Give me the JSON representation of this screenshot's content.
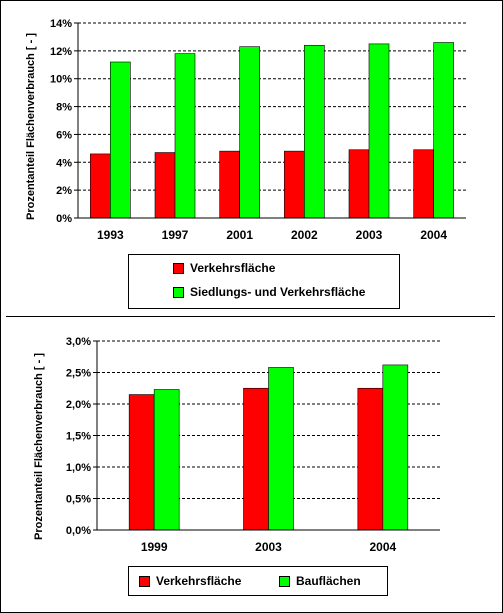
{
  "chart_data": [
    {
      "type": "bar",
      "categories": [
        "1993",
        "1997",
        "2001",
        "2002",
        "2003",
        "2004"
      ],
      "series": [
        {
          "name": "Verkehrsfläche",
          "values": [
            4.6,
            4.7,
            4.8,
            4.8,
            4.9,
            4.9
          ],
          "color": "#ff0000"
        },
        {
          "name": "Siedlungs- und Verkehrsfläche",
          "values": [
            11.2,
            11.8,
            12.3,
            12.4,
            12.5,
            12.6
          ],
          "color": "#00ff00"
        }
      ],
      "ylabel": "Prozentanteil Flächenverbrauch [ - ]",
      "ylim": [
        0,
        14
      ],
      "yticks": [
        "0%",
        "2%",
        "4%",
        "6%",
        "8%",
        "10%",
        "12%",
        "14%"
      ],
      "grid": true,
      "legend": "bottom"
    },
    {
      "type": "bar",
      "categories": [
        "1999",
        "2003",
        "2004"
      ],
      "series": [
        {
          "name": "Verkehrsfläche",
          "values": [
            2.15,
            2.25,
            2.25
          ],
          "color": "#ff0000"
        },
        {
          "name": "Bauflächen",
          "values": [
            2.23,
            2.58,
            2.62
          ],
          "color": "#00ff00"
        }
      ],
      "ylabel": "Prozentanteil Flächenverbrauch [ - ]",
      "ylim": [
        0,
        3
      ],
      "yticks": [
        "0,0%",
        "0,5%",
        "1,0%",
        "1,5%",
        "2,0%",
        "2,5%",
        "3,0%"
      ],
      "grid": true,
      "legend": "bottom"
    }
  ]
}
